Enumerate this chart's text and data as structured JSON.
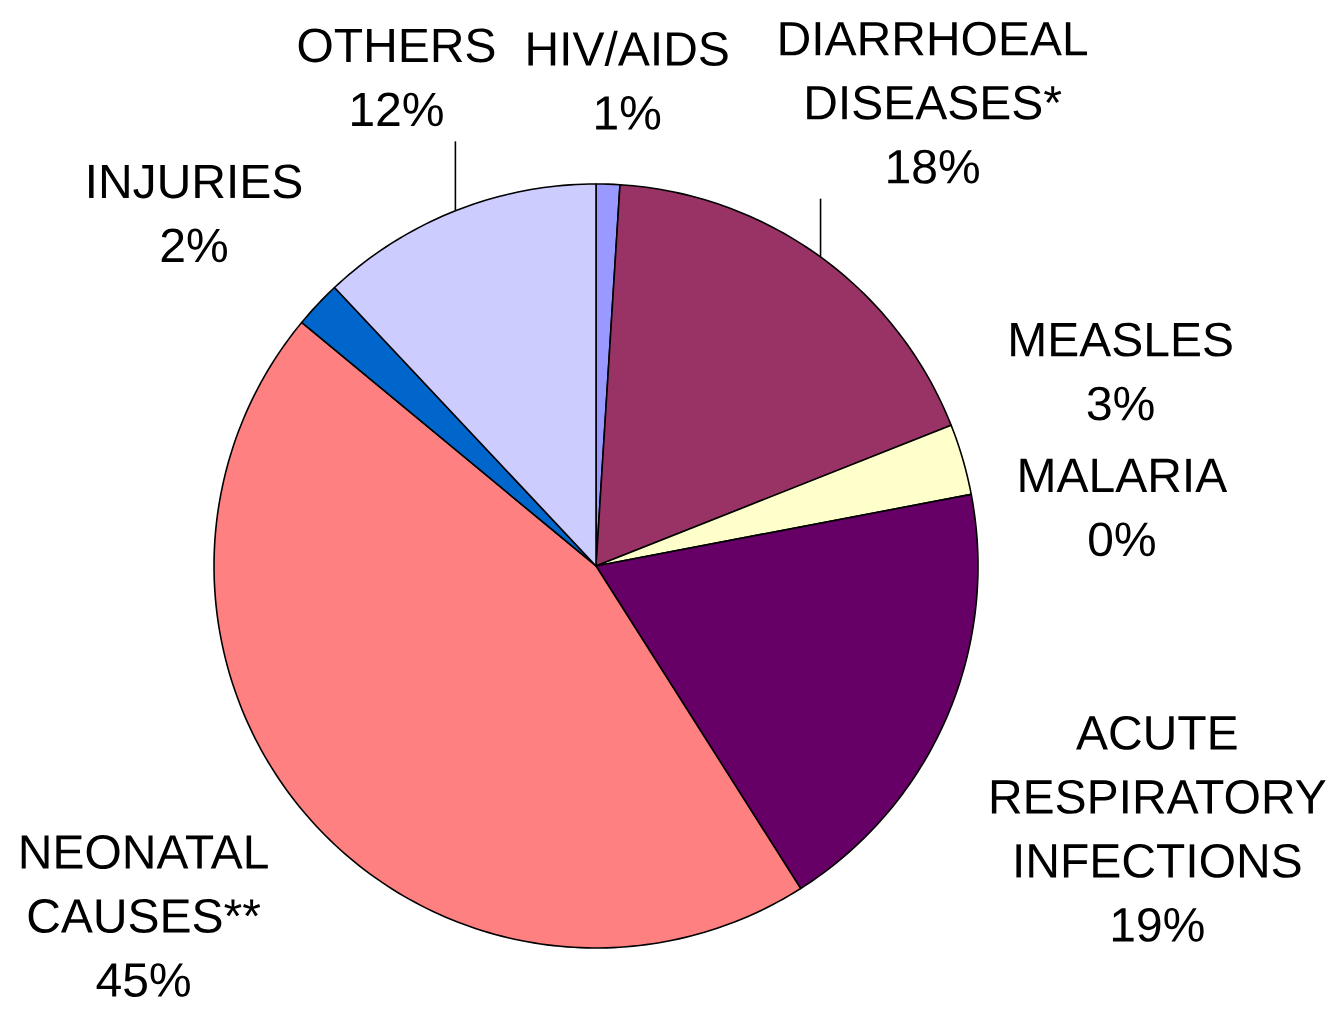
{
  "chart_data": {
    "type": "pie",
    "categories": [
      "HIV/AIDS",
      "DIARRHOEAL DISEASES*",
      "MEASLES",
      "MALARIA",
      "ACUTE RESPIRATORY INFECTIONS",
      "NEONATAL CAUSES**",
      "INJURIES",
      "OTHERS"
    ],
    "values": [
      1,
      18,
      3,
      0,
      19,
      45,
      2,
      12
    ],
    "colors": [
      "#9999ff",
      "#993366",
      "#ffffcc",
      "#ccffff",
      "#660066",
      "#ff8080",
      "#0066cc",
      "#ccccff"
    ],
    "value_labels": [
      "1%",
      "18%",
      "3%",
      "0%",
      "19%",
      "45%",
      "2%",
      "12%"
    ]
  }
}
